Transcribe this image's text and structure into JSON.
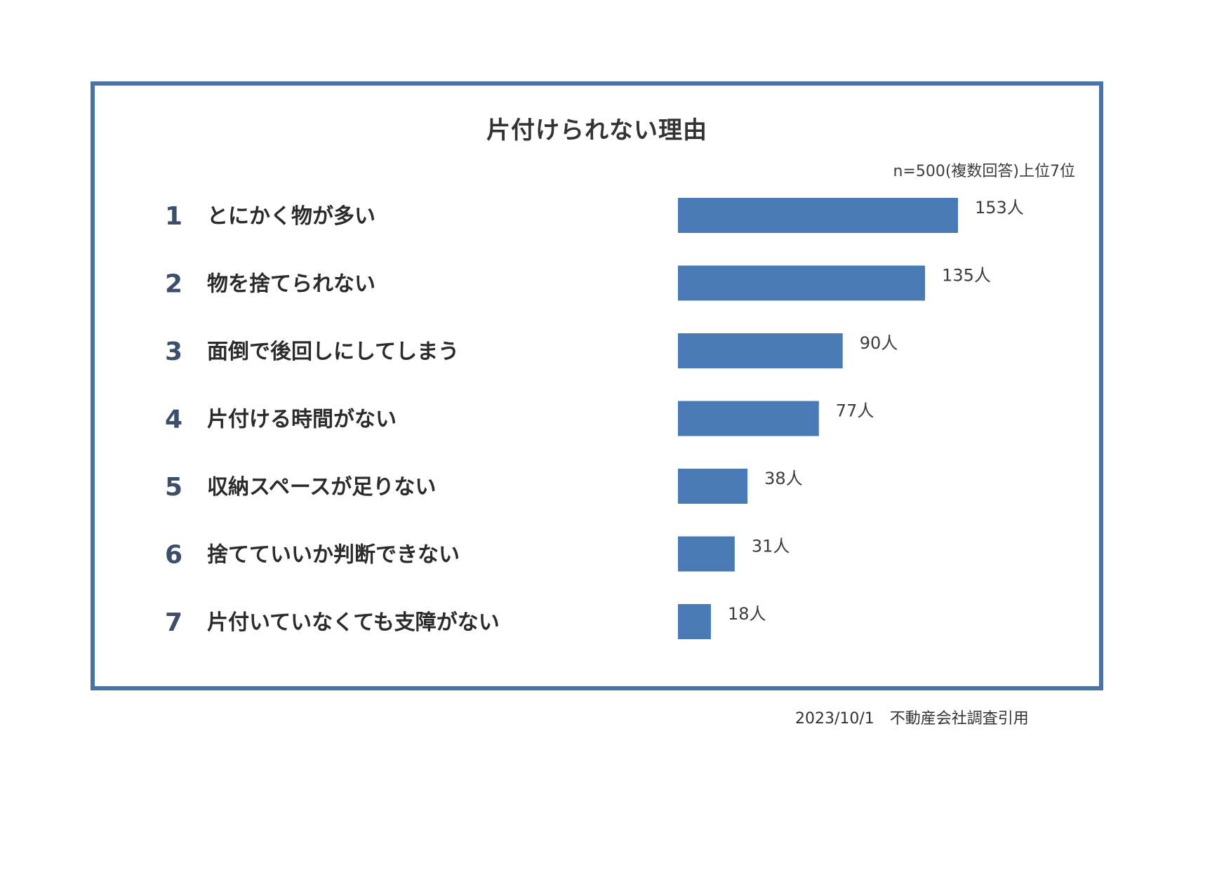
{
  "chart_data": {
    "type": "bar",
    "orientation": "horizontal",
    "title": "片付けられない理由",
    "subtitle": "n=500(複数回答)上位7位",
    "ranks": [
      "1",
      "2",
      "3",
      "4",
      "5",
      "6",
      "7"
    ],
    "categories": [
      "とにかく物が多い",
      "物を捨てられない",
      "面倒で後回しにしてしまう",
      "片付ける時間がない",
      "収納スペースが足りない",
      "捨てていいか判断できない",
      "片付いていなくても支障がない"
    ],
    "values": [
      153,
      135,
      90,
      77,
      38,
      31,
      18
    ],
    "value_labels": [
      "153人",
      "135人",
      "90人",
      "77人",
      "38人",
      "31人",
      "18人"
    ],
    "bar_color": "#4a7ab5",
    "frame_color": "#4a72a8",
    "grid": false,
    "legend": false,
    "xlim": [
      0,
      153
    ]
  },
  "source_note": "2023/10/1　不動産会社調査引用"
}
